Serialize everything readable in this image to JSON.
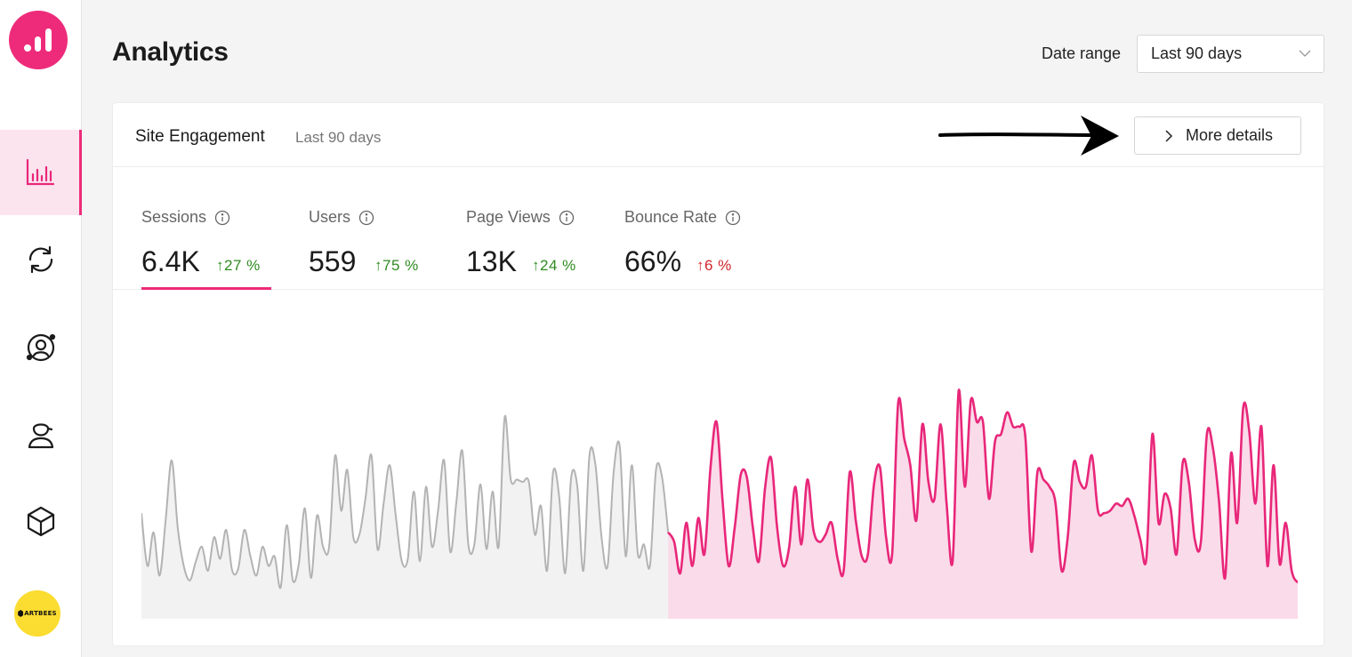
{
  "app": {
    "brand_color": "#ee2b7a",
    "brand_badge": "ARTBEES"
  },
  "sidebar": {
    "items": [
      {
        "icon": "bar-chart-icon",
        "active": true
      },
      {
        "icon": "refresh-icon",
        "active": false
      },
      {
        "icon": "user-circle-icon",
        "active": false
      },
      {
        "icon": "user-cap-icon",
        "active": false
      },
      {
        "icon": "cube-icon",
        "active": false
      }
    ]
  },
  "header": {
    "title": "Analytics",
    "date_range_label": "Date range",
    "date_range_value": "Last 90 days"
  },
  "card": {
    "title": "Site Engagement",
    "subtitle": "Last 90 days",
    "more_details_label": "More details"
  },
  "metrics": [
    {
      "label": "Sessions",
      "value": "6.4K",
      "change": "↑27 %",
      "trend": "up",
      "active": true
    },
    {
      "label": "Users",
      "value": "559",
      "change": "↑75 %",
      "trend": "up",
      "active": false
    },
    {
      "label": "Page Views",
      "value": "13K",
      "change": "↑24 %",
      "trend": "up",
      "active": false
    },
    {
      "label": "Bounce Rate",
      "value": "66%",
      "change": "↑6 %",
      "trend": "down",
      "active": false
    }
  ],
  "chart_data": {
    "type": "area",
    "ylim": [
      0,
      100
    ],
    "series": [
      {
        "color": "#b3b3b3",
        "fill": "#f2f2f2",
        "values": [
          44,
          22,
          36,
          18,
          41,
          66,
          38,
          22,
          16,
          24,
          30,
          20,
          34,
          25,
          37,
          20,
          21,
          37,
          26,
          18,
          30,
          22,
          26,
          13,
          39,
          16,
          23,
          46,
          17,
          43,
          30,
          30,
          68,
          45,
          62,
          34,
          35,
          50,
          68,
          29,
          48,
          64,
          43,
          24,
          25,
          53,
          24,
          55,
          30,
          45,
          66,
          28,
          48,
          70,
          31,
          31,
          56,
          29,
          53,
          30,
          84,
          58,
          58,
          57,
          57,
          35,
          47,
          20,
          61,
          51,
          19,
          59,
          55,
          20,
          68,
          64,
          34,
          22,
          61,
          72,
          26,
          64,
          27,
          31,
          22,
          62,
          59,
          36
        ]
      },
      {
        "color": "#e8277a",
        "fill": "#fadbe9",
        "values": [
          36,
          32,
          19,
          40,
          22,
          42,
          27,
          63,
          82,
          49,
          22,
          38,
          60,
          59,
          38,
          24,
          54,
          67,
          38,
          22,
          30,
          55,
          31,
          58,
          37,
          32,
          35,
          40,
          25,
          20,
          61,
          41,
          26,
          27,
          56,
          63,
          34,
          27,
          90,
          75,
          64,
          41,
          81,
          57,
          50,
          81,
          48,
          24,
          95,
          55,
          91,
          82,
          82,
          50,
          74,
          77,
          86,
          80,
          80,
          76,
          28,
          61,
          58,
          55,
          48,
          20,
          34,
          65,
          57,
          55,
          68,
          45,
          44,
          45,
          48,
          47,
          50,
          43,
          33,
          25,
          77,
          40,
          52,
          46,
          27,
          65,
          57,
          33,
          32,
          77,
          71,
          49,
          17,
          69,
          40,
          88,
          78,
          48,
          80,
          22,
          64,
          23,
          40,
          20,
          15
        ]
      }
    ]
  }
}
